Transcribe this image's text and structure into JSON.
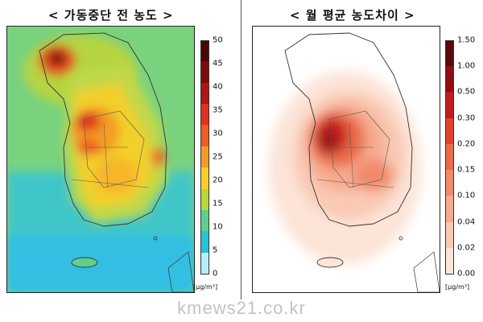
{
  "left_panel": {
    "title": "< 가동중단 전 농도 >",
    "unit": "[μg/m³]",
    "legend": {
      "ticks": [
        "50",
        "45",
        "40",
        "35",
        "30",
        "25",
        "20",
        "15",
        "10",
        "5",
        "0"
      ],
      "colors": [
        "#4a0606",
        "#7e0b0b",
        "#b31414",
        "#e0301f",
        "#f05a24",
        "#f39b25",
        "#f7cf2a",
        "#b9d83a",
        "#5fcf8f",
        "#27c2d8",
        "#b8ecf8"
      ]
    }
  },
  "right_panel": {
    "title": "< 월 평균 농도차이 >",
    "unit": "[μg/m³]",
    "legend": {
      "ticks": [
        "1.50",
        "1.00",
        "0.50",
        "0.30",
        "0.20",
        "0.15",
        "0.10",
        "0.04",
        "0.02",
        "0.00"
      ],
      "colors": [
        "#5a0a0a",
        "#8e0f12",
        "#c11d1d",
        "#e0442e",
        "#ea6a4a",
        "#f18a6a",
        "#f5ab8f",
        "#f9c9b4",
        "#fce4d8"
      ]
    }
  },
  "watermark": "kmews21.co.kr"
}
